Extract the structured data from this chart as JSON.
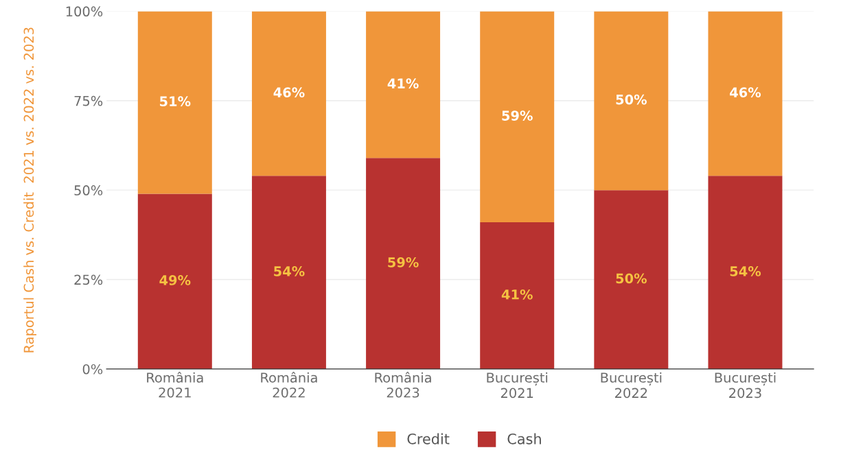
{
  "chart_data": {
    "type": "bar",
    "stacked": true,
    "categories": [
      "România\n2021",
      "România\n2022",
      "România\n2023",
      "București\n2021",
      "București\n2022",
      "București\n2023"
    ],
    "series": [
      {
        "name": "Cash",
        "color": "#b83230",
        "values": [
          49,
          54,
          59,
          41,
          50,
          54
        ],
        "value_labels": [
          "49%",
          "54%",
          "59%",
          "41%",
          "50%",
          "54%"
        ]
      },
      {
        "name": "Credit",
        "color": "#f0963a",
        "values": [
          51,
          46,
          41,
          59,
          50,
          46
        ],
        "value_labels": [
          "51%",
          "46%",
          "41%",
          "59%",
          "50%",
          "46%"
        ]
      }
    ],
    "ylabel": "Raportul Cash vs. Credit  2021 vs. 2022 vs. 2023",
    "ylim": [
      0,
      100
    ],
    "yticks": [
      {
        "value": 0,
        "label": "0%"
      },
      {
        "value": 25,
        "label": "25%"
      },
      {
        "value": 50,
        "label": "50%"
      },
      {
        "value": 75,
        "label": "75%"
      },
      {
        "value": 100,
        "label": "100%"
      }
    ],
    "grid": "y",
    "legend": "bottom"
  }
}
